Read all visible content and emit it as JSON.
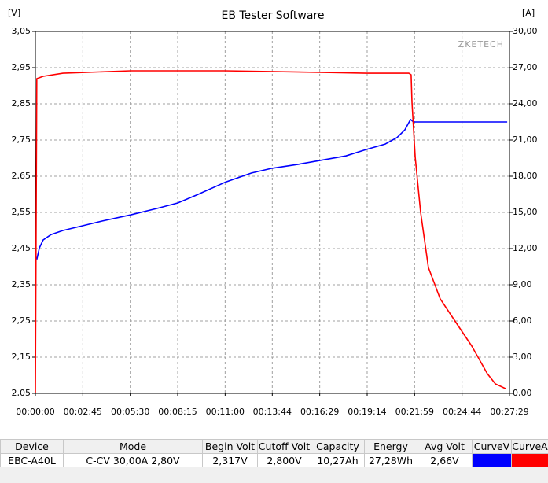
{
  "chart_data": {
    "type": "line",
    "title": "EB Tester Software",
    "y_label": "[V]",
    "y2_label": "[A]",
    "annotation": "ZKETECH",
    "xlim": [
      0,
      1649
    ],
    "xticks": [
      {
        "value": 0,
        "label": "00:00:00"
      },
      {
        "value": 165,
        "label": "00:02:45"
      },
      {
        "value": 330,
        "label": "00:05:30"
      },
      {
        "value": 495,
        "label": "00:08:15"
      },
      {
        "value": 660,
        "label": "00:11:00"
      },
      {
        "value": 824,
        "label": "00:13:44"
      },
      {
        "value": 989,
        "label": "00:16:29"
      },
      {
        "value": 1154,
        "label": "00:19:14"
      },
      {
        "value": 1319,
        "label": "00:21:59"
      },
      {
        "value": 1484,
        "label": "00:24:44"
      },
      {
        "value": 1649,
        "label": "00:27:29"
      }
    ],
    "ylim": [
      2.05,
      3.05
    ],
    "yticks": [
      {
        "value": 2.05,
        "label": "2,05"
      },
      {
        "value": 2.15,
        "label": "2,15"
      },
      {
        "value": 2.25,
        "label": "2,25"
      },
      {
        "value": 2.35,
        "label": "2,35"
      },
      {
        "value": 2.45,
        "label": "2,45"
      },
      {
        "value": 2.55,
        "label": "2,55"
      },
      {
        "value": 2.65,
        "label": "2,65"
      },
      {
        "value": 2.75,
        "label": "2,75"
      },
      {
        "value": 2.85,
        "label": "2,85"
      },
      {
        "value": 2.95,
        "label": "2,95"
      },
      {
        "value": 3.05,
        "label": "3,05"
      }
    ],
    "y2lim": [
      0,
      30
    ],
    "y2ticks": [
      {
        "value": 0,
        "label": "0,00"
      },
      {
        "value": 3,
        "label": "3,00"
      },
      {
        "value": 6,
        "label": "6,00"
      },
      {
        "value": 9,
        "label": "9,00"
      },
      {
        "value": 12,
        "label": "12,00"
      },
      {
        "value": 15,
        "label": "15,00"
      },
      {
        "value": 18,
        "label": "18,00"
      },
      {
        "value": 21,
        "label": "21,00"
      },
      {
        "value": 24,
        "label": "24,00"
      },
      {
        "value": 27,
        "label": "27,00"
      },
      {
        "value": 30,
        "label": "30,00"
      }
    ],
    "grid": true,
    "series": [
      {
        "name": "CurveV",
        "color": "#0000ff",
        "axis": "y",
        "x": [
          5,
          14,
          27,
          55,
          96,
          164,
          232,
          331,
          424,
          495,
          561,
          659,
          752,
          823,
          916,
          987,
          1080,
          1151,
          1217,
          1258,
          1285,
          1305,
          1315,
          1641
        ],
        "values": [
          2.42,
          2.452,
          2.474,
          2.489,
          2.5,
          2.513,
          2.526,
          2.543,
          2.561,
          2.576,
          2.598,
          2.633,
          2.659,
          2.672,
          2.683,
          2.693,
          2.706,
          2.724,
          2.739,
          2.757,
          2.778,
          2.807,
          2.8,
          2.8
        ]
      },
      {
        "name": "CurveA",
        "color": "#ff0000",
        "axis": "y2",
        "x": [
          0,
          5,
          27,
          96,
          331,
          659,
          987,
          1151,
          1299,
          1307,
          1310,
          1321,
          1340,
          1367,
          1408,
          1463,
          1518,
          1572,
          1600,
          1635
        ],
        "values": [
          0,
          26.09,
          26.28,
          26.54,
          26.74,
          26.74,
          26.61,
          26.54,
          26.54,
          26.41,
          24.13,
          19.57,
          15.0,
          10.43,
          7.83,
          5.87,
          3.91,
          1.63,
          0.78,
          0.39
        ]
      }
    ]
  },
  "table": {
    "headers": [
      "Device",
      "Mode",
      "Begin Volt",
      "Cutoff Volt",
      "Capacity",
      "Energy",
      "Avg Volt",
      "CurveV",
      "CurveA"
    ],
    "row": [
      "EBC-A40L",
      "C-CV  30,00A  2,80V",
      "2,317V",
      "2,800V",
      "10,27Ah",
      "27,28Wh",
      "2,66V"
    ]
  }
}
